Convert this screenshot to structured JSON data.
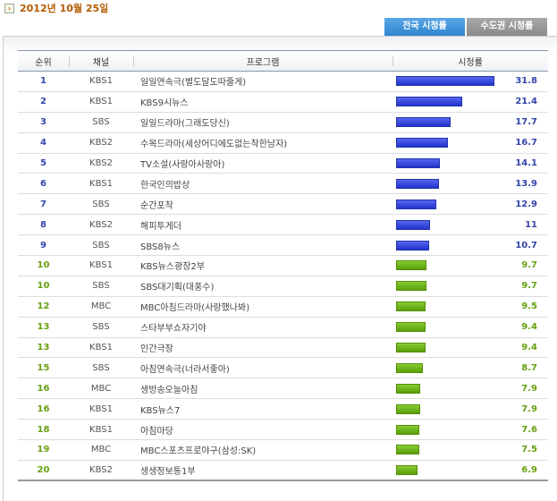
{
  "date": "2012년 10월 25일",
  "tabs": [
    {
      "label": "전국 시청률",
      "active": true
    },
    {
      "label": "수도권 시청률",
      "active": false
    }
  ],
  "headers": {
    "rank": "순위",
    "channel": "채널",
    "program": "프로그램",
    "rating": "시청률"
  },
  "rows": [
    {
      "rank": "1",
      "channel": "KBS1",
      "program": "일일연속극(별도달도따줄게)",
      "rating": "31.8",
      "value": 31.8
    },
    {
      "rank": "2",
      "channel": "KBS1",
      "program": "KBS9시뉴스",
      "rating": "21.4",
      "value": 21.4
    },
    {
      "rank": "3",
      "channel": "SBS",
      "program": "일일드라마(그래도당신)",
      "rating": "17.7",
      "value": 17.7
    },
    {
      "rank": "4",
      "channel": "KBS2",
      "program": "수목드라마(세상어디에도없는착한남자)",
      "rating": "16.7",
      "value": 16.7
    },
    {
      "rank": "5",
      "channel": "KBS2",
      "program": "TV소설(사랑아사랑아)",
      "rating": "14.1",
      "value": 14.1
    },
    {
      "rank": "6",
      "channel": "KBS1",
      "program": "한국인의밥상",
      "rating": "13.9",
      "value": 13.9
    },
    {
      "rank": "7",
      "channel": "SBS",
      "program": "순간포착",
      "rating": "12.9",
      "value": 12.9
    },
    {
      "rank": "8",
      "channel": "KBS2",
      "program": "해피투게더",
      "rating": "11",
      "value": 11
    },
    {
      "rank": "9",
      "channel": "SBS",
      "program": "SBS8뉴스",
      "rating": "10.7",
      "value": 10.7
    },
    {
      "rank": "10",
      "channel": "KBS1",
      "program": "KBS뉴스광장2부",
      "rating": "9.7",
      "value": 9.7
    },
    {
      "rank": "10",
      "channel": "SBS",
      "program": "SBS대기획(대풍수)",
      "rating": "9.7",
      "value": 9.7
    },
    {
      "rank": "12",
      "channel": "MBC",
      "program": "MBC아침드라마(사랑했나봐)",
      "rating": "9.5",
      "value": 9.5
    },
    {
      "rank": "13",
      "channel": "SBS",
      "program": "스타부부쇼자기야",
      "rating": "9.4",
      "value": 9.4
    },
    {
      "rank": "13",
      "channel": "KBS1",
      "program": "인간극장",
      "rating": "9.4",
      "value": 9.4
    },
    {
      "rank": "15",
      "channel": "SBS",
      "program": "아침연속극(너라서좋아)",
      "rating": "8.7",
      "value": 8.7
    },
    {
      "rank": "16",
      "channel": "MBC",
      "program": "생방송오늘아침",
      "rating": "7.9",
      "value": 7.9
    },
    {
      "rank": "16",
      "channel": "KBS1",
      "program": "KBS뉴스7",
      "rating": "7.9",
      "value": 7.9
    },
    {
      "rank": "18",
      "channel": "KBS1",
      "program": "아침마당",
      "rating": "7.6",
      "value": 7.6
    },
    {
      "rank": "19",
      "channel": "MBC",
      "program": "MBC스포츠프로야구(삼성:SK)",
      "rating": "7.5",
      "value": 7.5
    },
    {
      "rank": "20",
      "channel": "KBS2",
      "program": "생생정보통1부",
      "rating": "6.9",
      "value": 6.9
    }
  ],
  "colors": {
    "top": "#2233cc",
    "rest": "#66a010"
  }
}
